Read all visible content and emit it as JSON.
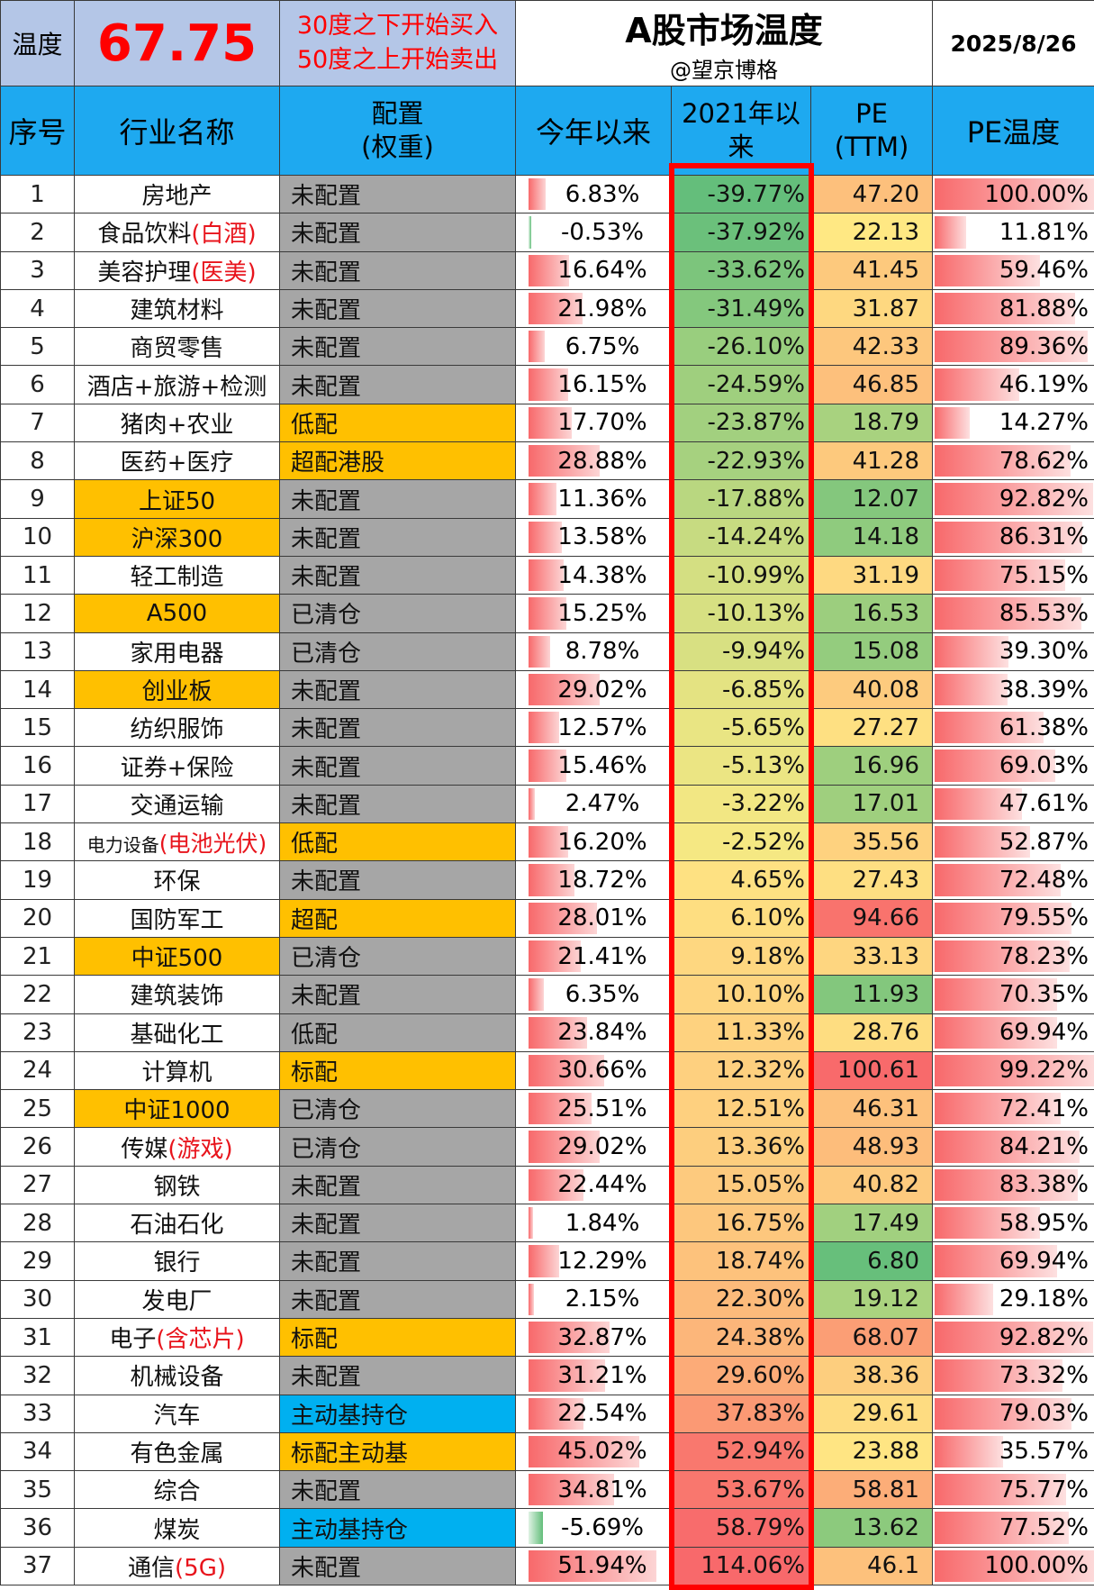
{
  "top": {
    "temp_label": "温度",
    "temp_value": "67.75",
    "rule_line1": "30度之下开始买入",
    "rule_line2": "50度之上开始卖出",
    "title": "A股市场温度",
    "subtitle": "@望京博格",
    "date": "2025/8/26"
  },
  "headers": {
    "index": "序号",
    "name": "行业名称",
    "alloc_line1": "配置",
    "alloc_line2": "(权重)",
    "ytd": "今年以来",
    "since2021_line1": "2021年以",
    "since2021_line2": "来",
    "pe_line1": "PE",
    "pe_line2": "(TTM)",
    "pe_temp": "PE温度"
  },
  "colors": {
    "header_blue": "#1ea9f0",
    "highlight_gold": "#ffc000",
    "config_gray": "#a6a6a6",
    "config_blue": "#00b0f0",
    "frame_red": "#ff0000",
    "text_red": "#e8141c"
  },
  "rows": [
    {
      "n": "1",
      "name": "房地产",
      "name_red": "",
      "hl": false,
      "cfg": "未配置",
      "cfg_color": "gray",
      "ytd": "6.83%",
      "ytd_v": 6.83,
      "s21": "-39.77%",
      "s21_v": -39.77,
      "pe": "47.20",
      "pe_v": 47.2,
      "pt": "100.00%",
      "pt_v": 100.0
    },
    {
      "n": "2",
      "name": "食品饮料",
      "name_red": "(白酒)",
      "hl": false,
      "cfg": "未配置",
      "cfg_color": "gray",
      "ytd": "-0.53%",
      "ytd_v": -0.53,
      "s21": "-37.92%",
      "s21_v": -37.92,
      "pe": "22.13",
      "pe_v": 22.13,
      "pt": "11.81%",
      "pt_v": 11.81
    },
    {
      "n": "3",
      "name": "美容护理",
      "name_red": "(医美)",
      "hl": false,
      "cfg": "未配置",
      "cfg_color": "gray",
      "ytd": "16.64%",
      "ytd_v": 16.64,
      "s21": "-33.62%",
      "s21_v": -33.62,
      "pe": "41.45",
      "pe_v": 41.45,
      "pt": "59.46%",
      "pt_v": 59.46
    },
    {
      "n": "4",
      "name": "建筑材料",
      "name_red": "",
      "hl": false,
      "cfg": "未配置",
      "cfg_color": "gray",
      "ytd": "21.98%",
      "ytd_v": 21.98,
      "s21": "-31.49%",
      "s21_v": -31.49,
      "pe": "31.87",
      "pe_v": 31.87,
      "pt": "81.88%",
      "pt_v": 81.88
    },
    {
      "n": "5",
      "name": "商贸零售",
      "name_red": "",
      "hl": false,
      "cfg": "未配置",
      "cfg_color": "gray",
      "ytd": "6.75%",
      "ytd_v": 6.75,
      "s21": "-26.10%",
      "s21_v": -26.1,
      "pe": "42.33",
      "pe_v": 42.33,
      "pt": "89.36%",
      "pt_v": 89.36
    },
    {
      "n": "6",
      "name": "酒店+旅游+检测",
      "name_red": "",
      "hl": false,
      "cfg": "未配置",
      "cfg_color": "gray",
      "ytd": "16.15%",
      "ytd_v": 16.15,
      "s21": "-24.59%",
      "s21_v": -24.59,
      "pe": "46.85",
      "pe_v": 46.85,
      "pt": "46.19%",
      "pt_v": 46.19
    },
    {
      "n": "7",
      "name": "猪肉+农业",
      "name_red": "",
      "hl": false,
      "cfg": "低配",
      "cfg_color": "gold",
      "ytd": "17.70%",
      "ytd_v": 17.7,
      "s21": "-23.87%",
      "s21_v": -23.87,
      "pe": "18.79",
      "pe_v": 18.79,
      "pt": "14.27%",
      "pt_v": 14.27
    },
    {
      "n": "8",
      "name": "医药+医疗",
      "name_red": "",
      "hl": false,
      "cfg": "超配港股",
      "cfg_color": "gold",
      "ytd": "28.88%",
      "ytd_v": 28.88,
      "s21": "-22.93%",
      "s21_v": -22.93,
      "pe": "41.28",
      "pe_v": 41.28,
      "pt": "78.62%",
      "pt_v": 78.62
    },
    {
      "n": "9",
      "name": "上证50",
      "name_red": "",
      "hl": true,
      "cfg": "未配置",
      "cfg_color": "gray",
      "ytd": "11.36%",
      "ytd_v": 11.36,
      "s21": "-17.88%",
      "s21_v": -17.88,
      "pe": "12.07",
      "pe_v": 12.07,
      "pt": "92.82%",
      "pt_v": 92.82
    },
    {
      "n": "10",
      "name": "沪深300",
      "name_red": "",
      "hl": true,
      "cfg": "未配置",
      "cfg_color": "gray",
      "ytd": "13.58%",
      "ytd_v": 13.58,
      "s21": "-14.24%",
      "s21_v": -14.24,
      "pe": "14.18",
      "pe_v": 14.18,
      "pt": "86.31%",
      "pt_v": 86.31
    },
    {
      "n": "11",
      "name": "轻工制造",
      "name_red": "",
      "hl": false,
      "cfg": "未配置",
      "cfg_color": "gray",
      "ytd": "14.38%",
      "ytd_v": 14.38,
      "s21": "-10.99%",
      "s21_v": -10.99,
      "pe": "31.19",
      "pe_v": 31.19,
      "pt": "75.15%",
      "pt_v": 75.15
    },
    {
      "n": "12",
      "name": "A500",
      "name_red": "",
      "hl": true,
      "cfg": "已清仓",
      "cfg_color": "gray",
      "ytd": "15.25%",
      "ytd_v": 15.25,
      "s21": "-10.13%",
      "s21_v": -10.13,
      "pe": "16.53",
      "pe_v": 16.53,
      "pt": "85.53%",
      "pt_v": 85.53
    },
    {
      "n": "13",
      "name": "家用电器",
      "name_red": "",
      "hl": false,
      "cfg": "已清仓",
      "cfg_color": "gray",
      "ytd": "8.78%",
      "ytd_v": 8.78,
      "s21": "-9.94%",
      "s21_v": -9.94,
      "pe": "15.08",
      "pe_v": 15.08,
      "pt": "39.30%",
      "pt_v": 39.3
    },
    {
      "n": "14",
      "name": "创业板",
      "name_red": "",
      "hl": true,
      "cfg": "未配置",
      "cfg_color": "gray",
      "ytd": "29.02%",
      "ytd_v": 29.02,
      "s21": "-6.85%",
      "s21_v": -6.85,
      "pe": "40.08",
      "pe_v": 40.08,
      "pt": "38.39%",
      "pt_v": 38.39
    },
    {
      "n": "15",
      "name": "纺织服饰",
      "name_red": "",
      "hl": false,
      "cfg": "未配置",
      "cfg_color": "gray",
      "ytd": "12.57%",
      "ytd_v": 12.57,
      "s21": "-5.65%",
      "s21_v": -5.65,
      "pe": "27.27",
      "pe_v": 27.27,
      "pt": "61.38%",
      "pt_v": 61.38
    },
    {
      "n": "16",
      "name": "证券+保险",
      "name_red": "",
      "hl": false,
      "cfg": "未配置",
      "cfg_color": "gray",
      "ytd": "15.46%",
      "ytd_v": 15.46,
      "s21": "-5.13%",
      "s21_v": -5.13,
      "pe": "16.96",
      "pe_v": 16.96,
      "pt": "69.03%",
      "pt_v": 69.03
    },
    {
      "n": "17",
      "name": "交通运输",
      "name_red": "",
      "hl": false,
      "cfg": "未配置",
      "cfg_color": "gray",
      "ytd": "2.47%",
      "ytd_v": 2.47,
      "s21": "-3.22%",
      "s21_v": -3.22,
      "pe": "17.01",
      "pe_v": 17.01,
      "pt": "47.61%",
      "pt_v": 47.61
    },
    {
      "n": "18",
      "name": "电力设备",
      "name_red": "(电池光伏)",
      "hl": false,
      "small": true,
      "cfg": "低配",
      "cfg_color": "gold",
      "ytd": "16.20%",
      "ytd_v": 16.2,
      "s21": "-2.52%",
      "s21_v": -2.52,
      "pe": "35.56",
      "pe_v": 35.56,
      "pt": "52.87%",
      "pt_v": 52.87
    },
    {
      "n": "19",
      "name": "环保",
      "name_red": "",
      "hl": false,
      "cfg": "未配置",
      "cfg_color": "gray",
      "ytd": "18.72%",
      "ytd_v": 18.72,
      "s21": "4.65%",
      "s21_v": 4.65,
      "pe": "27.43",
      "pe_v": 27.43,
      "pt": "72.48%",
      "pt_v": 72.48
    },
    {
      "n": "20",
      "name": "国防军工",
      "name_red": "",
      "hl": false,
      "cfg": "超配",
      "cfg_color": "gold",
      "ytd": "28.01%",
      "ytd_v": 28.01,
      "s21": "6.10%",
      "s21_v": 6.1,
      "pe": "94.66",
      "pe_v": 94.66,
      "pt": "79.55%",
      "pt_v": 79.55
    },
    {
      "n": "21",
      "name": "中证500",
      "name_red": "",
      "hl": true,
      "cfg": "已清仓",
      "cfg_color": "gray",
      "ytd": "21.41%",
      "ytd_v": 21.41,
      "s21": "9.18%",
      "s21_v": 9.18,
      "pe": "33.13",
      "pe_v": 33.13,
      "pt": "78.23%",
      "pt_v": 78.23
    },
    {
      "n": "22",
      "name": "建筑装饰",
      "name_red": "",
      "hl": false,
      "cfg": "未配置",
      "cfg_color": "gray",
      "ytd": "6.35%",
      "ytd_v": 6.35,
      "s21": "10.10%",
      "s21_v": 10.1,
      "pe": "11.93",
      "pe_v": 11.93,
      "pt": "70.35%",
      "pt_v": 70.35
    },
    {
      "n": "23",
      "name": "基础化工",
      "name_red": "",
      "hl": false,
      "cfg": "低配",
      "cfg_color": "gray",
      "ytd": "23.84%",
      "ytd_v": 23.84,
      "s21": "11.33%",
      "s21_v": 11.33,
      "pe": "28.76",
      "pe_v": 28.76,
      "pt": "69.94%",
      "pt_v": 69.94
    },
    {
      "n": "24",
      "name": "计算机",
      "name_red": "",
      "hl": false,
      "cfg": "标配",
      "cfg_color": "gold",
      "ytd": "30.66%",
      "ytd_v": 30.66,
      "s21": "12.32%",
      "s21_v": 12.32,
      "pe": "100.61",
      "pe_v": 100.61,
      "pt": "99.22%",
      "pt_v": 99.22
    },
    {
      "n": "25",
      "name": "中证1000",
      "name_red": "",
      "hl": true,
      "cfg": "已清仓",
      "cfg_color": "gray",
      "ytd": "25.51%",
      "ytd_v": 25.51,
      "s21": "12.51%",
      "s21_v": 12.51,
      "pe": "46.31",
      "pe_v": 46.31,
      "pt": "72.41%",
      "pt_v": 72.41
    },
    {
      "n": "26",
      "name": "传媒",
      "name_red": "(游戏)",
      "hl": false,
      "cfg": "已清仓",
      "cfg_color": "gray",
      "ytd": "29.02%",
      "ytd_v": 29.02,
      "s21": "13.36%",
      "s21_v": 13.36,
      "pe": "48.93",
      "pe_v": 48.93,
      "pt": "84.21%",
      "pt_v": 84.21
    },
    {
      "n": "27",
      "name": "钢铁",
      "name_red": "",
      "hl": false,
      "cfg": "未配置",
      "cfg_color": "gray",
      "ytd": "22.44%",
      "ytd_v": 22.44,
      "s21": "15.05%",
      "s21_v": 15.05,
      "pe": "40.82",
      "pe_v": 40.82,
      "pt": "83.38%",
      "pt_v": 83.38
    },
    {
      "n": "28",
      "name": "石油石化",
      "name_red": "",
      "hl": false,
      "cfg": "未配置",
      "cfg_color": "gray",
      "ytd": "1.84%",
      "ytd_v": 1.84,
      "s21": "16.75%",
      "s21_v": 16.75,
      "pe": "17.49",
      "pe_v": 17.49,
      "pt": "58.95%",
      "pt_v": 58.95
    },
    {
      "n": "29",
      "name": "银行",
      "name_red": "",
      "hl": false,
      "cfg": "未配置",
      "cfg_color": "gray",
      "ytd": "12.29%",
      "ytd_v": 12.29,
      "s21": "18.74%",
      "s21_v": 18.74,
      "pe": "6.80",
      "pe_v": 6.8,
      "pt": "69.94%",
      "pt_v": 69.94
    },
    {
      "n": "30",
      "name": "发电厂",
      "name_red": "",
      "hl": false,
      "cfg": "未配置",
      "cfg_color": "gray",
      "ytd": "2.15%",
      "ytd_v": 2.15,
      "s21": "22.30%",
      "s21_v": 22.3,
      "pe": "19.12",
      "pe_v": 19.12,
      "pt": "29.18%",
      "pt_v": 29.18
    },
    {
      "n": "31",
      "name": "电子",
      "name_red": "(含芯片)",
      "hl": false,
      "cfg": "标配",
      "cfg_color": "gold",
      "ytd": "32.87%",
      "ytd_v": 32.87,
      "s21": "24.38%",
      "s21_v": 24.38,
      "pe": "68.07",
      "pe_v": 68.07,
      "pt": "92.82%",
      "pt_v": 92.82
    },
    {
      "n": "32",
      "name": "机械设备",
      "name_red": "",
      "hl": false,
      "cfg": "未配置",
      "cfg_color": "gray",
      "ytd": "31.21%",
      "ytd_v": 31.21,
      "s21": "29.60%",
      "s21_v": 29.6,
      "pe": "38.36",
      "pe_v": 38.36,
      "pt": "73.32%",
      "pt_v": 73.32
    },
    {
      "n": "33",
      "name": "汽车",
      "name_red": "",
      "hl": false,
      "cfg": "主动基持仓",
      "cfg_color": "blue",
      "ytd": "22.54%",
      "ytd_v": 22.54,
      "s21": "37.83%",
      "s21_v": 37.83,
      "pe": "29.61",
      "pe_v": 29.61,
      "pt": "79.03%",
      "pt_v": 79.03
    },
    {
      "n": "34",
      "name": "有色金属",
      "name_red": "",
      "hl": false,
      "cfg": "标配主动基",
      "cfg_color": "gold",
      "ytd": "45.02%",
      "ytd_v": 45.02,
      "s21": "52.94%",
      "s21_v": 52.94,
      "pe": "23.88",
      "pe_v": 23.88,
      "pt": "35.57%",
      "pt_v": 35.57
    },
    {
      "n": "35",
      "name": "综合",
      "name_red": "",
      "hl": false,
      "cfg": "未配置",
      "cfg_color": "gray",
      "ytd": "34.81%",
      "ytd_v": 34.81,
      "s21": "53.67%",
      "s21_v": 53.67,
      "pe": "58.81",
      "pe_v": 58.81,
      "pt": "75.77%",
      "pt_v": 75.77
    },
    {
      "n": "36",
      "name": "煤炭",
      "name_red": "",
      "hl": false,
      "cfg": "主动基持仓",
      "cfg_color": "blue",
      "ytd": "-5.69%",
      "ytd_v": -5.69,
      "s21": "58.79%",
      "s21_v": 58.79,
      "pe": "13.62",
      "pe_v": 13.62,
      "pt": "77.52%",
      "pt_v": 77.52
    },
    {
      "n": "37",
      "name": "通信",
      "name_red": "(5G)",
      "hl": false,
      "cfg": "未配置",
      "cfg_color": "gray",
      "ytd": "51.94%",
      "ytd_v": 51.94,
      "s21": "114.06%",
      "s21_v": 114.06,
      "pe": "46.1",
      "pe_v": 46.1,
      "pt": "100.00%",
      "pt_v": 100.0
    }
  ]
}
